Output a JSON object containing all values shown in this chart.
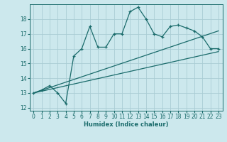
{
  "xlabel": "Humidex (Indice chaleur)",
  "bg_color": "#cce8ed",
  "grid_color": "#aacdd4",
  "line_color": "#1a6b6b",
  "xlim": [
    -0.5,
    23.5
  ],
  "ylim": [
    11.8,
    19.0
  ],
  "yticks": [
    12,
    13,
    14,
    15,
    16,
    17,
    18
  ],
  "xticks": [
    0,
    1,
    2,
    3,
    4,
    5,
    6,
    7,
    8,
    9,
    10,
    11,
    12,
    13,
    14,
    15,
    16,
    17,
    18,
    19,
    20,
    21,
    22,
    23
  ],
  "series1_x": [
    0,
    1,
    2,
    3,
    4,
    5,
    6,
    7,
    8,
    9,
    10,
    11,
    12,
    13,
    14,
    15,
    16,
    17,
    18,
    19,
    20,
    21,
    22,
    23
  ],
  "series1_y": [
    13.0,
    13.2,
    13.5,
    13.0,
    12.3,
    15.5,
    16.0,
    17.5,
    16.1,
    16.1,
    17.0,
    17.0,
    18.5,
    18.8,
    18.0,
    17.0,
    16.8,
    17.5,
    17.6,
    17.4,
    17.2,
    16.8,
    16.0,
    16.0
  ],
  "series2_x": [
    0,
    23
  ],
  "series2_y": [
    13.0,
    17.2
  ],
  "series3_x": [
    0,
    23
  ],
  "series3_y": [
    13.0,
    15.8
  ]
}
